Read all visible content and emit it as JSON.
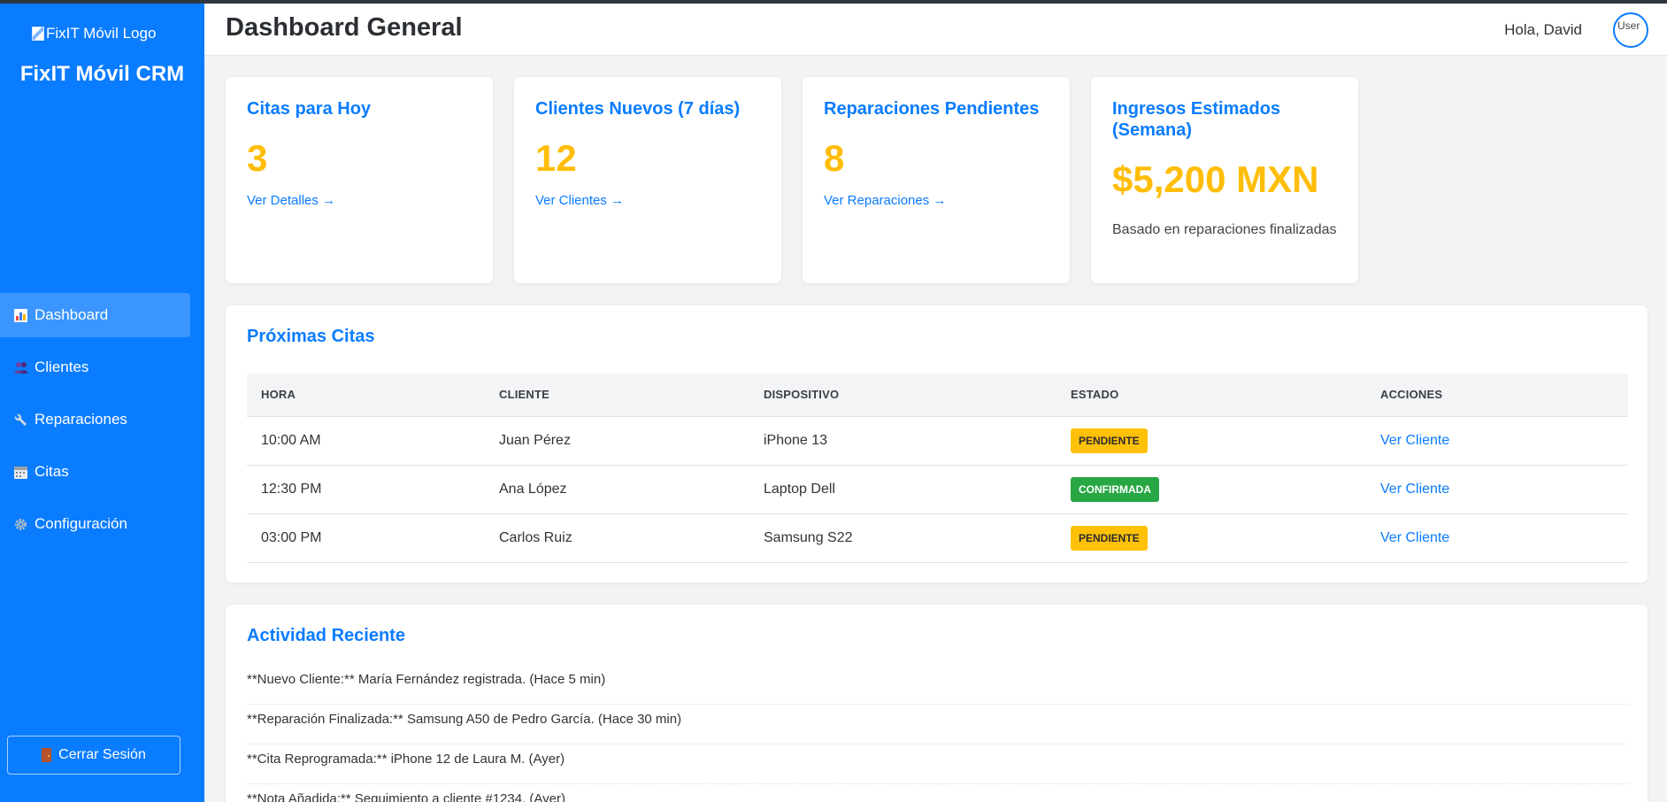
{
  "sidebar": {
    "logo_alt": "FixIT Móvil Logo",
    "brand": "FixIT Móvil CRM",
    "items": [
      {
        "label": "Dashboard",
        "icon": "bar-chart-icon",
        "active": true
      },
      {
        "label": "Clientes",
        "icon": "people-icon",
        "active": false
      },
      {
        "label": "Reparaciones",
        "icon": "wrench-icon",
        "active": false
      },
      {
        "label": "Citas",
        "icon": "calendar-icon",
        "active": false
      },
      {
        "label": "Configuración",
        "icon": "gear-icon",
        "active": false
      }
    ],
    "logout_label": "Cerrar Sesión"
  },
  "header": {
    "title": "Dashboard General",
    "greeting": "Hola, David",
    "avatar_alt": "User"
  },
  "kpis": [
    {
      "title": "Citas para Hoy",
      "value": "3",
      "link": "Ver Detalles →"
    },
    {
      "title": "Clientes Nuevos (7 días)",
      "value": "12",
      "link": "Ver Clientes →"
    },
    {
      "title": "Reparaciones Pendientes",
      "value": "8",
      "link": "Ver Reparaciones →"
    },
    {
      "title": "Ingresos Estimados (Semana)",
      "value": "$5,200 MXN",
      "note": "Basado en reparaciones finalizadas"
    }
  ],
  "appointments": {
    "title": "Próximas Citas",
    "columns": [
      "HORA",
      "CLIENTE",
      "DISPOSITIVO",
      "ESTADO",
      "ACCIONES"
    ],
    "rows": [
      {
        "hora": "10:00 AM",
        "cliente": "Juan Pérez",
        "dispositivo": "iPhone 13",
        "estado": "PENDIENTE",
        "accion": "Ver Cliente"
      },
      {
        "hora": "12:30 PM",
        "cliente": "Ana López",
        "dispositivo": "Laptop Dell",
        "estado": "CONFIRMADA",
        "accion": "Ver Cliente"
      },
      {
        "hora": "03:00 PM",
        "cliente": "Carlos Ruiz",
        "dispositivo": "Samsung S22",
        "estado": "PENDIENTE",
        "accion": "Ver Cliente"
      }
    ]
  },
  "activity": {
    "title": "Actividad Reciente",
    "items": [
      "**Nuevo Cliente:** María Fernández registrada. (Hace 5 min)",
      "**Reparación Finalizada:** Samsung A50 de Pedro García. (Hace 30 min)",
      "**Cita Reprogramada:** iPhone 12 de Laura M. (Ayer)",
      "**Nota Añadida:** Seguimiento a cliente #1234. (Ayer)"
    ]
  },
  "colors": {
    "primary": "#0a7cff",
    "accent": "#ffbd07",
    "pending": "#ffc107",
    "confirmed": "#28a745"
  }
}
